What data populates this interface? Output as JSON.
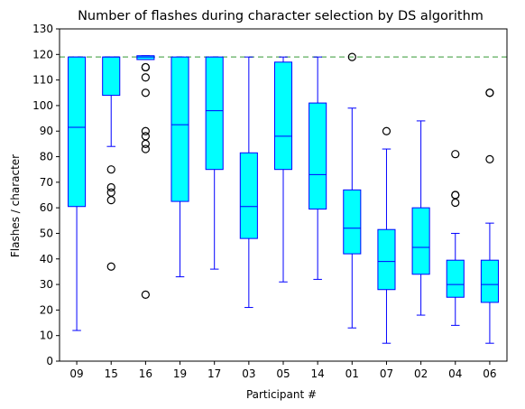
{
  "chart_data": {
    "type": "boxplot",
    "title": "Number of flashes during character selection by DS algorithm",
    "xlabel": "Participant #",
    "ylabel": "Flashes / character",
    "ylim": [
      0,
      130
    ],
    "yticks": [
      0,
      10,
      20,
      30,
      40,
      50,
      60,
      70,
      80,
      90,
      100,
      110,
      120,
      130
    ],
    "grid": false,
    "reference_line": {
      "y": 119,
      "style": "dashed",
      "color": "#77bb77"
    },
    "colors": {
      "box_fill": "#00ffff",
      "box_edge": "#0000ff",
      "whisker": "#0000ff",
      "median": "#0000ff",
      "outlier_edge": "#000000"
    },
    "categories": [
      "09",
      "15",
      "16",
      "19",
      "17",
      "03",
      "05",
      "14",
      "01",
      "07",
      "02",
      "04",
      "06"
    ],
    "boxes": [
      {
        "label": "09",
        "whislo": 12,
        "q1": 60.5,
        "med": 91.5,
        "q3": 119,
        "whishi": 119,
        "fliers": []
      },
      {
        "label": "15",
        "whislo": 84,
        "q1": 104,
        "med": 119,
        "q3": 119,
        "whishi": 119,
        "fliers": [
          75,
          68,
          66,
          63,
          37
        ]
      },
      {
        "label": "16",
        "whislo": 118,
        "q1": 118,
        "med": 119,
        "q3": 119.5,
        "whishi": 119.5,
        "fliers": [
          115,
          115,
          111,
          105,
          90,
          88,
          85,
          83,
          26
        ]
      },
      {
        "label": "19",
        "whislo": 33,
        "q1": 62.5,
        "med": 92.5,
        "q3": 119,
        "whishi": 119,
        "fliers": []
      },
      {
        "label": "17",
        "whislo": 36,
        "q1": 75,
        "med": 98,
        "q3": 119,
        "whishi": 119,
        "fliers": []
      },
      {
        "label": "03",
        "whislo": 21,
        "q1": 48,
        "med": 60.5,
        "q3": 81.5,
        "whishi": 119,
        "fliers": []
      },
      {
        "label": "05",
        "whislo": 31,
        "q1": 75,
        "med": 88,
        "q3": 117,
        "whishi": 119,
        "fliers": []
      },
      {
        "label": "14",
        "whislo": 32,
        "q1": 59.5,
        "med": 73,
        "q3": 101,
        "whishi": 119,
        "fliers": []
      },
      {
        "label": "01",
        "whislo": 13,
        "q1": 42,
        "med": 52,
        "q3": 67,
        "whishi": 99,
        "fliers": [
          119
        ]
      },
      {
        "label": "07",
        "whislo": 7,
        "q1": 28,
        "med": 39,
        "q3": 51.5,
        "whishi": 83,
        "fliers": [
          90
        ]
      },
      {
        "label": "02",
        "whislo": 18,
        "q1": 34,
        "med": 44.5,
        "q3": 60,
        "whishi": 94,
        "fliers": []
      },
      {
        "label": "04",
        "whislo": 14,
        "q1": 25,
        "med": 30,
        "q3": 39.5,
        "whishi": 50,
        "fliers": [
          81,
          65,
          65,
          62
        ]
      },
      {
        "label": "06",
        "whislo": 7,
        "q1": 23,
        "med": 30,
        "q3": 39.5,
        "whishi": 54,
        "fliers": [
          105,
          105,
          79
        ]
      }
    ]
  }
}
